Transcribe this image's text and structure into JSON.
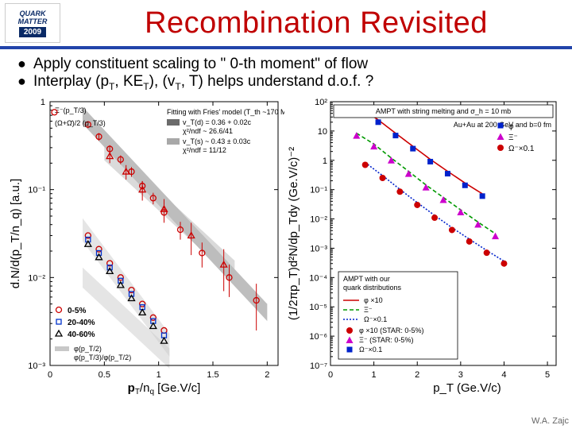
{
  "header": {
    "logo_top": "QUARK",
    "logo_mid": "MATTER",
    "logo_year": "2009",
    "title": "Recombination Revisited"
  },
  "bullets": [
    "Apply constituent scaling to \" 0-th moment\" of flow",
    "Interplay (p_T, KE_T), (v_T, T) helps understand d.o.f. ?"
  ],
  "credit": "W.A. Zajc",
  "left_plot": {
    "type": "scatter-band-logy",
    "xlim": [
      0,
      2.1
    ],
    "xtick_step": 0.5,
    "ylim_exp": [
      -3,
      0
    ],
    "xlabel": "p_T/n_q [Ge.V/c]",
    "ylabel": "d.N/d(p_T/n_q) [a.u.]",
    "fit_title": "Fitting with Fries' model (T_th ~170 MeV)",
    "fit_lines": [
      "v_T(d) = 0.36 + 0.02c",
      "χ²/ndf ~ 26.6/41",
      "v_T(s) ~ 0.43 ± 0.03c",
      "χ²/ndf = 11/12"
    ],
    "band_dark_color": "#6b6b6b",
    "band_light_color": "#a8a8a8",
    "band_vlight_color": "#c8c8c8",
    "series_meta": [
      {
        "name": "Ξ⁻(p_T/3)",
        "marker": "circle",
        "color": "#cc0000"
      },
      {
        "name": "(Ω+Ω̄)/2 (p_T/3)",
        "marker": "triangle",
        "color": "#cc0000"
      }
    ],
    "xi_points": [
      {
        "x": 0.35,
        "y": 0.55,
        "ey": 0.05
      },
      {
        "x": 0.45,
        "y": 0.4,
        "ey": 0.04
      },
      {
        "x": 0.55,
        "y": 0.29,
        "ey": 0.03
      },
      {
        "x": 0.65,
        "y": 0.22,
        "ey": 0.025
      },
      {
        "x": 0.75,
        "y": 0.16,
        "ey": 0.02
      },
      {
        "x": 0.85,
        "y": 0.11,
        "ey": 0.015
      },
      {
        "x": 0.95,
        "y": 0.08,
        "ey": 0.012
      },
      {
        "x": 1.05,
        "y": 0.055,
        "ey": 0.01
      },
      {
        "x": 1.2,
        "y": 0.035,
        "ey": 0.008
      },
      {
        "x": 1.4,
        "y": 0.019,
        "ey": 0.006
      },
      {
        "x": 1.65,
        "y": 0.01,
        "ey": 0.004
      },
      {
        "x": 1.9,
        "y": 0.0055,
        "ey": 0.003
      }
    ],
    "omega_points": [
      {
        "x": 0.55,
        "y": 0.24,
        "ey": 0.04
      },
      {
        "x": 0.7,
        "y": 0.16,
        "ey": 0.03
      },
      {
        "x": 0.85,
        "y": 0.1,
        "ey": 0.025
      },
      {
        "x": 1.05,
        "y": 0.06,
        "ey": 0.018
      },
      {
        "x": 1.3,
        "y": 0.03,
        "ey": 0.012
      },
      {
        "x": 1.6,
        "y": 0.014,
        "ey": 0.007
      }
    ],
    "mid_points_circle": [
      {
        "x": 0.35,
        "y": 0.03
      },
      {
        "x": 0.45,
        "y": 0.021
      },
      {
        "x": 0.55,
        "y": 0.0145
      },
      {
        "x": 0.65,
        "y": 0.01
      },
      {
        "x": 0.75,
        "y": 0.0072
      },
      {
        "x": 0.85,
        "y": 0.005
      },
      {
        "x": 0.95,
        "y": 0.0035
      },
      {
        "x": 1.05,
        "y": 0.0025
      }
    ],
    "mid_points_circle_color": "#c80000",
    "mid_points_square": [
      {
        "x": 0.35,
        "y": 0.027
      },
      {
        "x": 0.45,
        "y": 0.019
      },
      {
        "x": 0.55,
        "y": 0.013
      },
      {
        "x": 0.65,
        "y": 0.0092
      },
      {
        "x": 0.75,
        "y": 0.0065
      },
      {
        "x": 0.85,
        "y": 0.0046
      },
      {
        "x": 0.95,
        "y": 0.0032
      },
      {
        "x": 1.05,
        "y": 0.0022
      }
    ],
    "mid_points_square_color": "#0033cc",
    "mid_points_tri": [
      {
        "x": 0.35,
        "y": 0.024
      },
      {
        "x": 0.45,
        "y": 0.017
      },
      {
        "x": 0.55,
        "y": 0.0118
      },
      {
        "x": 0.65,
        "y": 0.0082
      },
      {
        "x": 0.75,
        "y": 0.0058
      },
      {
        "x": 0.85,
        "y": 0.004
      },
      {
        "x": 0.95,
        "y": 0.0028
      },
      {
        "x": 1.05,
        "y": 0.0019
      }
    ],
    "mid_points_tri_color": "#000000",
    "cent_legend": [
      {
        "label": "0-5%",
        "marker": "circle",
        "color": "#cc0000"
      },
      {
        "label": "20-40%",
        "marker": "square",
        "color": "#0033cc"
      },
      {
        "label": "40-60%",
        "marker": "triangle",
        "color": "#000000"
      }
    ],
    "ratio_lines": [
      "φ(p_T/2)",
      "φ(p_T/3)/φ(p_T/2)"
    ]
  },
  "right_plot": {
    "type": "scatter-line-logy",
    "xlim": [
      0,
      5.2
    ],
    "xticks": [
      0,
      1,
      2,
      3,
      4,
      5
    ],
    "ylim_exp": [
      -7,
      2
    ],
    "xlabel": "p_T (Ge.V/c)",
    "ylabel": "(1/2πp_T)d²N/dp_Tdy (Ge.V/c)⁻²",
    "title_box": "AMPT with string melting and σ_h = 10 mb",
    "subtitle": "Au+Au at 200 GeV and b=0 fm",
    "series": [
      {
        "name": "φ",
        "marker": "square",
        "color": "#0022cc",
        "points": [
          {
            "x": 0.7,
            "y": 50
          },
          {
            "x": 1.1,
            "y": 20
          },
          {
            "x": 1.5,
            "y": 7
          },
          {
            "x": 1.9,
            "y": 2.5
          },
          {
            "x": 2.3,
            "y": 0.9
          },
          {
            "x": 2.7,
            "y": 0.35
          },
          {
            "x": 3.1,
            "y": 0.14
          },
          {
            "x": 3.5,
            "y": 0.06
          }
        ]
      },
      {
        "name": "Ξ⁻",
        "marker": "triangle",
        "color": "#cc00cc",
        "points": [
          {
            "x": 0.6,
            "y": 7
          },
          {
            "x": 1.0,
            "y": 3
          },
          {
            "x": 1.4,
            "y": 1.0
          },
          {
            "x": 1.8,
            "y": 0.35
          },
          {
            "x": 2.2,
            "y": 0.12
          },
          {
            "x": 2.6,
            "y": 0.045
          },
          {
            "x": 3.0,
            "y": 0.017
          },
          {
            "x": 3.4,
            "y": 0.0065
          },
          {
            "x": 3.8,
            "y": 0.0026
          }
        ]
      },
      {
        "name": "Ω⁻×0.1",
        "marker": "circle",
        "color": "#cc0000",
        "points": [
          {
            "x": 0.8,
            "y": 0.7
          },
          {
            "x": 1.2,
            "y": 0.25
          },
          {
            "x": 1.6,
            "y": 0.085
          },
          {
            "x": 2.0,
            "y": 0.03
          },
          {
            "x": 2.4,
            "y": 0.011
          },
          {
            "x": 2.8,
            "y": 0.0042
          },
          {
            "x": 3.2,
            "y": 0.0017
          },
          {
            "x": 3.6,
            "y": 0.0007
          },
          {
            "x": 4.0,
            "y": 0.0003
          }
        ]
      }
    ],
    "model_box_title": "AMPT with our quark distributions",
    "model_lines": [
      {
        "label": "φ ×10",
        "color": "#cc0000",
        "dash": "4,0"
      },
      {
        "label": "Ξ⁻",
        "color": "#009900",
        "dash": "5,3"
      },
      {
        "label": "Ω⁻×0.1",
        "color": "#0022cc",
        "dash": "2,2"
      }
    ],
    "star_lines": [
      {
        "label": "φ ×10 (STAR: 0-5%)",
        "marker": "circle",
        "color": "#cc0000"
      },
      {
        "label": "Ξ⁻ (STAR: 0-5%)",
        "marker": "triangle",
        "color": "#cc00cc"
      },
      {
        "label": "Ω⁻×0.1",
        "marker": "square",
        "color": "#0022cc"
      }
    ],
    "legend_outer": [
      {
        "label": "φ",
        "marker": "square",
        "color": "#0022cc"
      },
      {
        "label": "Ξ⁻",
        "marker": "triangle",
        "color": "#cc00cc"
      },
      {
        "label": "Ω⁻×0.1",
        "marker": "circle",
        "color": "#cc0000"
      }
    ]
  }
}
